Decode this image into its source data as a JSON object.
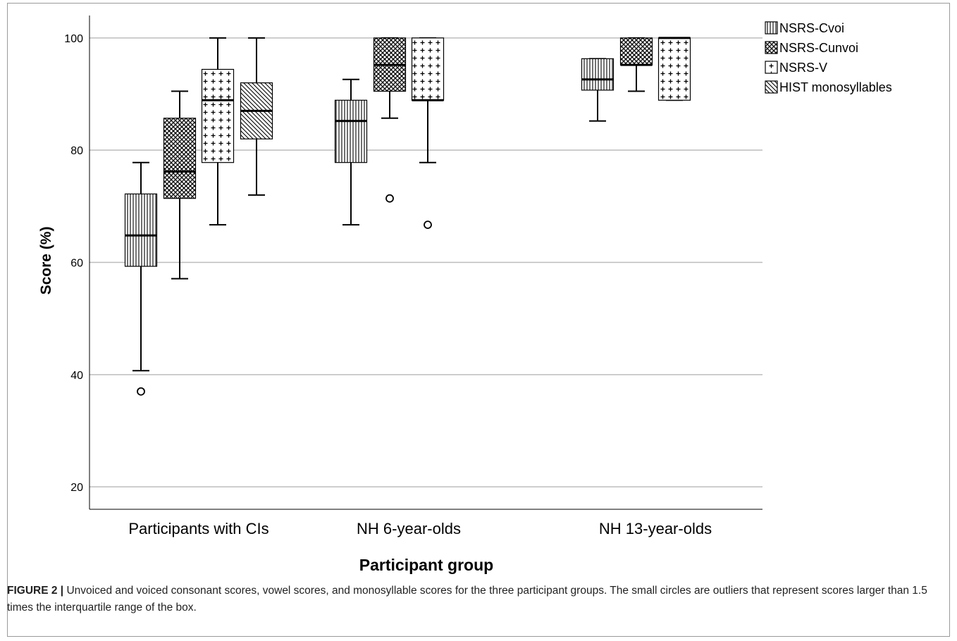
{
  "caption": {
    "label": "FIGURE 2 |",
    "text": " Unvoiced and voiced consonant scores, vowel scores, and monosyllable scores for the three participant groups. The small circles are outliers that represent scores larger than 1.5 times the interquartile range of the box."
  },
  "chart_data": {
    "type": "boxplot",
    "xlabel": "Participant group",
    "ylabel": "Score (%)",
    "ylim": [
      16,
      104
    ],
    "yticks": [
      20,
      40,
      60,
      80,
      100
    ],
    "grid": "horizontal",
    "legend_position": "top-right",
    "categories": [
      "Participants with CIs",
      "NH 6-year-olds",
      "NH 13-year-olds"
    ],
    "series": [
      {
        "name": "NSRS-Cvoi",
        "pattern": "vertical-lines",
        "boxes": [
          {
            "min": 40.7,
            "q1": 59.3,
            "median": 64.8,
            "q3": 72.2,
            "max": 77.8,
            "outliers": [
              37.0
            ]
          },
          {
            "min": 66.7,
            "q1": 77.8,
            "median": 85.2,
            "q3": 88.9,
            "max": 92.6,
            "outliers": []
          },
          {
            "min": 85.2,
            "q1": 90.7,
            "median": 92.6,
            "q3": 96.3,
            "max": 96.3,
            "outliers": []
          }
        ]
      },
      {
        "name": "NSRS-Cunvoi",
        "pattern": "crosshatch",
        "boxes": [
          {
            "min": 57.1,
            "q1": 71.4,
            "median": 76.2,
            "q3": 85.7,
            "max": 90.5,
            "outliers": []
          },
          {
            "min": 85.7,
            "q1": 90.5,
            "median": 95.2,
            "q3": 100.0,
            "max": 100.0,
            "outliers": [
              71.4
            ]
          },
          {
            "min": 90.5,
            "q1": 95.2,
            "median": 95.2,
            "q3": 100.0,
            "max": 100.0,
            "outliers": []
          }
        ]
      },
      {
        "name": "NSRS-V",
        "pattern": "plus",
        "boxes": [
          {
            "min": 66.7,
            "q1": 77.8,
            "median": 88.9,
            "q3": 94.4,
            "max": 100.0,
            "outliers": []
          },
          {
            "min": 77.8,
            "q1": 88.9,
            "median": 88.9,
            "q3": 100.0,
            "max": 100.0,
            "outliers": [
              66.7
            ]
          },
          {
            "min": 88.9,
            "q1": 88.9,
            "median": 100.0,
            "q3": 100.0,
            "max": 100.0,
            "outliers": []
          }
        ]
      },
      {
        "name": "HIST monosyllables",
        "pattern": "diagonal",
        "boxes": [
          {
            "min": 72.0,
            "q1": 82.0,
            "median": 87.0,
            "q3": 92.0,
            "max": 100.0,
            "outliers": []
          },
          null,
          null
        ]
      }
    ]
  }
}
